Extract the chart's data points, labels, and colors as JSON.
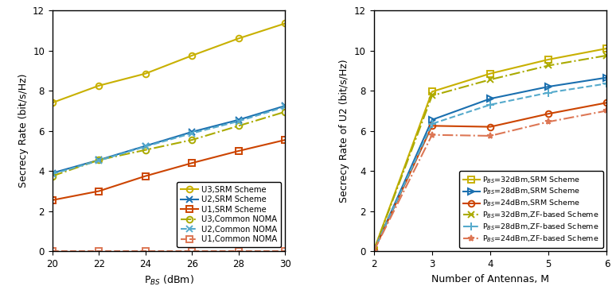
{
  "left": {
    "x": [
      20,
      22,
      24,
      26,
      28,
      30
    ],
    "U3_SRM": [
      7.4,
      8.25,
      8.85,
      9.75,
      10.6,
      11.35
    ],
    "U2_SRM": [
      3.9,
      4.55,
      5.25,
      5.95,
      6.55,
      7.25
    ],
    "U1_SRM": [
      2.55,
      3.0,
      3.75,
      4.4,
      5.0,
      5.55
    ],
    "U3_NOMA": [
      3.75,
      4.55,
      5.05,
      5.55,
      6.25,
      6.95
    ],
    "U2_NOMA": [
      3.85,
      4.52,
      5.22,
      5.88,
      6.48,
      7.2
    ],
    "U1_NOMA": [
      0.02,
      0.02,
      0.02,
      0.02,
      0.02,
      0.02
    ],
    "U2_NOMA_hide": [
      0.02,
      0.02,
      0.02,
      0.02,
      0.02,
      0.02
    ],
    "ylabel": "Secrecy Rate (bit/s/Hz)",
    "xlabel": "P$_{BS}$ (dBm)",
    "ylim": [
      0,
      12
    ],
    "xlim": [
      20,
      30
    ],
    "yticks": [
      0,
      2,
      4,
      6,
      8,
      10,
      12
    ],
    "xticks": [
      20,
      22,
      24,
      26,
      28,
      30
    ],
    "legend_loc": "lower right"
  },
  "right": {
    "x": [
      2,
      3,
      4,
      5,
      6
    ],
    "P32_SRM": [
      0.05,
      7.95,
      8.85,
      9.55,
      10.1
    ],
    "P28_SRM": [
      0.03,
      6.55,
      7.6,
      8.2,
      8.65
    ],
    "P24_SRM": [
      0.02,
      6.25,
      6.2,
      6.85,
      7.4
    ],
    "P32_ZF": [
      0.04,
      7.75,
      8.55,
      9.25,
      9.75
    ],
    "P28_ZF": [
      0.025,
      6.35,
      7.3,
      7.9,
      8.35
    ],
    "P24_ZF": [
      0.015,
      5.8,
      5.75,
      6.45,
      7.0
    ],
    "ylabel": "Secrecy Rate of U2 (bit/s/Hz)",
    "xlabel": "Number of Antennas, M",
    "ylim": [
      0,
      12
    ],
    "xlim": [
      2,
      6
    ],
    "yticks": [
      0,
      2,
      4,
      6,
      8,
      10,
      12
    ],
    "xticks": [
      2,
      3,
      4,
      5,
      6
    ],
    "legend_loc": "lower right"
  },
  "color_yellow": "#c8b000",
  "color_blue": "#1a6faf",
  "color_orange": "#cc4400",
  "color_yellow_d": "#aaaa00",
  "color_blue_d": "#55aacc",
  "color_orange_d": "#dd7755"
}
